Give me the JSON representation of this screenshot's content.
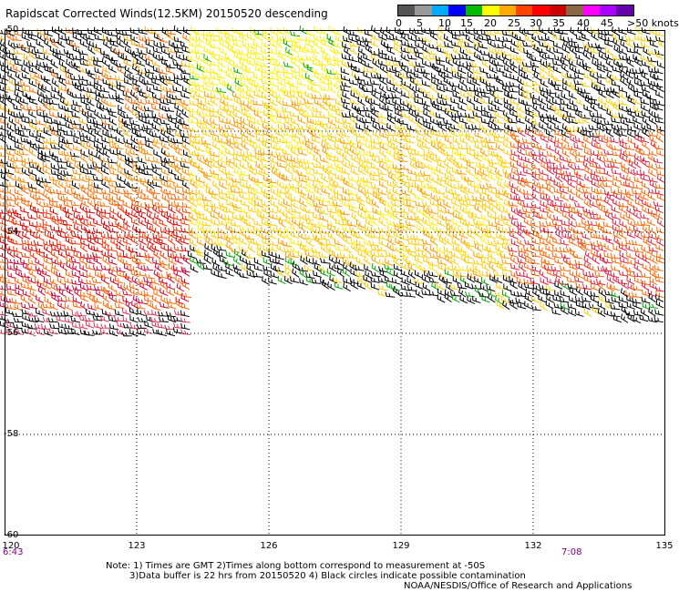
{
  "title": "Rapidscat Corrected Winds(12.5KM) 20150520 descending",
  "colorbar": {
    "colors": [
      "#555555",
      "#999999",
      "#00aaff",
      "#0000ff",
      "#00bb00",
      "#ffff00",
      "#ffaa00",
      "#ff4400",
      "#ff0000",
      "#cc0000",
      "#886644",
      "#ff00ff",
      "#aa00ff",
      "#6600aa"
    ],
    "labels": [
      "0",
      "5",
      "10",
      "15",
      "20",
      "25",
      "30",
      "35",
      "40",
      "45",
      ">50 knots"
    ]
  },
  "map": {
    "lon_range": [
      120,
      135
    ],
    "lat_range": [
      -60,
      -50
    ],
    "lat_labels": [
      "-50",
      "-54",
      "-56",
      "-58",
      "-60"
    ],
    "lon_labels": [
      "120",
      "123",
      "126",
      "129",
      "132",
      "135"
    ],
    "time_labels": [
      "6:43",
      "7:08"
    ]
  },
  "notes": {
    "line1": "Note: 1) Times are GMT 2)Times along bottom correspond to measurement at -50S",
    "line2": "3)Data buffer is 22 hrs from 20150520 4) Black circles indicate possible contamination",
    "credit": "NOAA/NESDIS/Office of Research and Applications"
  }
}
